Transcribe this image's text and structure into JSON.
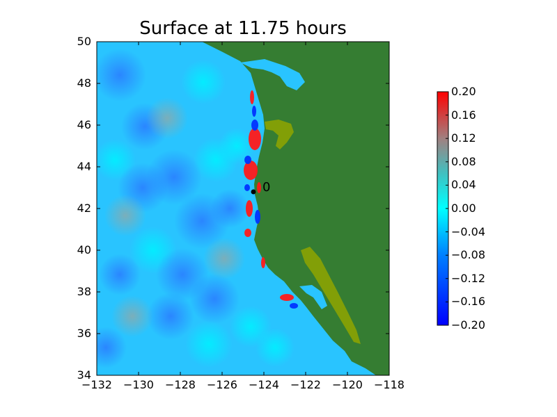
{
  "chart_data": {
    "type": "heatmap",
    "title": "Surface at 11.75 hours",
    "xlabel": "",
    "ylabel": "",
    "xlim": [
      -132,
      -118
    ],
    "ylim": [
      34,
      50
    ],
    "x_ticks": [
      "−132",
      "−130",
      "−128",
      "−126",
      "−124",
      "−122",
      "−120",
      "−118"
    ],
    "y_ticks": [
      "50",
      "48",
      "46",
      "44",
      "42",
      "40",
      "38",
      "36",
      "34"
    ],
    "colorbar": {
      "range": [
        -0.2,
        0.2
      ],
      "ticks": [
        "0.20",
        "0.16",
        "0.12",
        "0.08",
        "0.04",
        "0.00",
        "−0.04",
        "−0.08",
        "−0.12",
        "−0.16",
        "−0.20"
      ],
      "colors": [
        "#0000ff",
        "#00ffff",
        "#ff0000"
      ]
    },
    "land_color": "#357d32",
    "shallow_land_color": "#8fa500",
    "marker": {
      "lon": -124.5,
      "lat": 42.8,
      "label": "0"
    },
    "grid": false
  }
}
